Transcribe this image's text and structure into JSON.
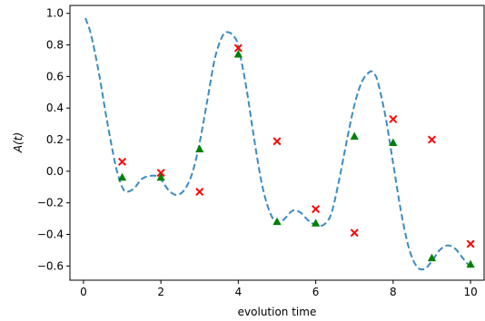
{
  "chart_data": {
    "type": "line",
    "xlabel": "evolution time",
    "ylabel": "A(t)",
    "xlim": [
      -0.35,
      10.35
    ],
    "ylim": [
      -0.69,
      1.05
    ],
    "xticks": [
      0,
      2,
      4,
      6,
      8,
      10
    ],
    "yticks": [
      1.0,
      0.8,
      0.6,
      0.4,
      0.2,
      0.0,
      -0.2,
      -0.4,
      -0.6
    ],
    "grid": false,
    "series": [
      {
        "style": "dashed-line",
        "color": "#3b8bc2",
        "x": [
          0.05,
          0.2,
          0.4,
          0.6,
          0.8,
          0.9,
          1.0,
          1.1,
          1.3,
          1.5,
          1.7,
          1.9,
          2.0,
          2.2,
          2.4,
          2.6,
          2.8,
          3.0,
          3.2,
          3.4,
          3.6,
          3.75,
          3.9,
          4.0,
          4.2,
          4.4,
          4.6,
          4.8,
          5.0,
          5.2,
          5.4,
          5.6,
          5.8,
          6.0,
          6.2,
          6.4,
          6.6,
          6.8,
          7.0,
          7.2,
          7.4,
          7.5,
          7.6,
          7.8,
          8.0,
          8.2,
          8.4,
          8.6,
          8.8,
          9.0,
          9.2,
          9.4,
          9.6,
          9.8,
          10.0
        ],
        "y": [
          0.97,
          0.86,
          0.62,
          0.33,
          0.07,
          -0.03,
          -0.1,
          -0.13,
          -0.11,
          -0.05,
          -0.03,
          -0.03,
          -0.05,
          -0.12,
          -0.15,
          -0.12,
          -0.02,
          0.18,
          0.45,
          0.72,
          0.86,
          0.88,
          0.85,
          0.79,
          0.54,
          0.22,
          -0.07,
          -0.25,
          -0.33,
          -0.3,
          -0.25,
          -0.26,
          -0.31,
          -0.34,
          -0.34,
          -0.27,
          -0.06,
          0.19,
          0.42,
          0.57,
          0.63,
          0.62,
          0.57,
          0.35,
          0.05,
          -0.25,
          -0.48,
          -0.6,
          -0.62,
          -0.57,
          -0.5,
          -0.47,
          -0.49,
          -0.55,
          -0.61
        ]
      },
      {
        "style": "x-markers",
        "color": "#ff0000",
        "x": [
          1,
          2,
          3,
          4,
          5,
          6,
          7,
          8,
          9,
          10
        ],
        "y": [
          0.06,
          -0.01,
          -0.13,
          0.78,
          0.19,
          -0.24,
          -0.39,
          0.33,
          0.2,
          -0.46
        ]
      },
      {
        "style": "triangle-markers",
        "color": "#008000",
        "x": [
          1,
          2,
          3,
          4,
          5,
          6,
          7,
          8,
          9,
          10
        ],
        "y": [
          -0.04,
          -0.04,
          0.14,
          0.74,
          -0.32,
          -0.33,
          0.22,
          0.18,
          -0.55,
          -0.59
        ]
      }
    ]
  }
}
